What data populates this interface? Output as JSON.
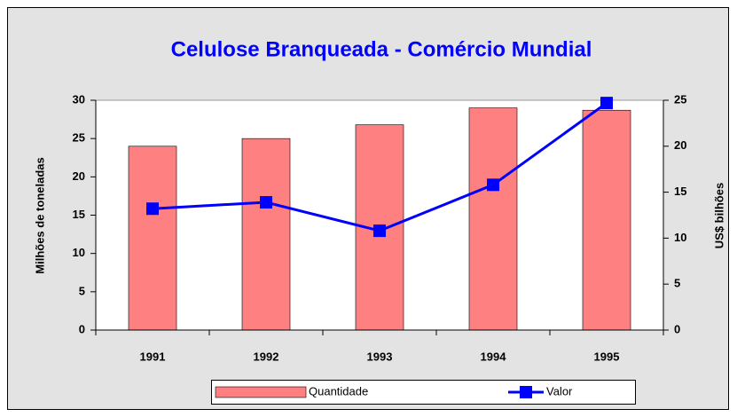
{
  "chart_data": {
    "type": "bar",
    "title": "Celulose Branqueada - Comércio Mundial",
    "categories": [
      "1991",
      "1992",
      "1993",
      "1994",
      "1995"
    ],
    "series": [
      {
        "name": "Quantidade",
        "type": "bar",
        "color": "#ff8080",
        "values": [
          24.0,
          25.0,
          26.8,
          29.0,
          28.7
        ]
      },
      {
        "name": "Valor",
        "type": "line",
        "axis": "y2",
        "color": "#0000ff",
        "values": [
          13.2,
          13.9,
          10.8,
          15.8,
          24.7
        ]
      }
    ],
    "ylabel": "Milhões de toneladas",
    "y2label": "US$ bilhões",
    "ylim": [
      0,
      30
    ],
    "yticks": [
      0,
      5,
      10,
      15,
      20,
      25,
      30
    ],
    "y2lim": [
      0,
      25
    ],
    "y2ticks": [
      0,
      5,
      10,
      15,
      20,
      25
    ],
    "legend": "bottom"
  }
}
